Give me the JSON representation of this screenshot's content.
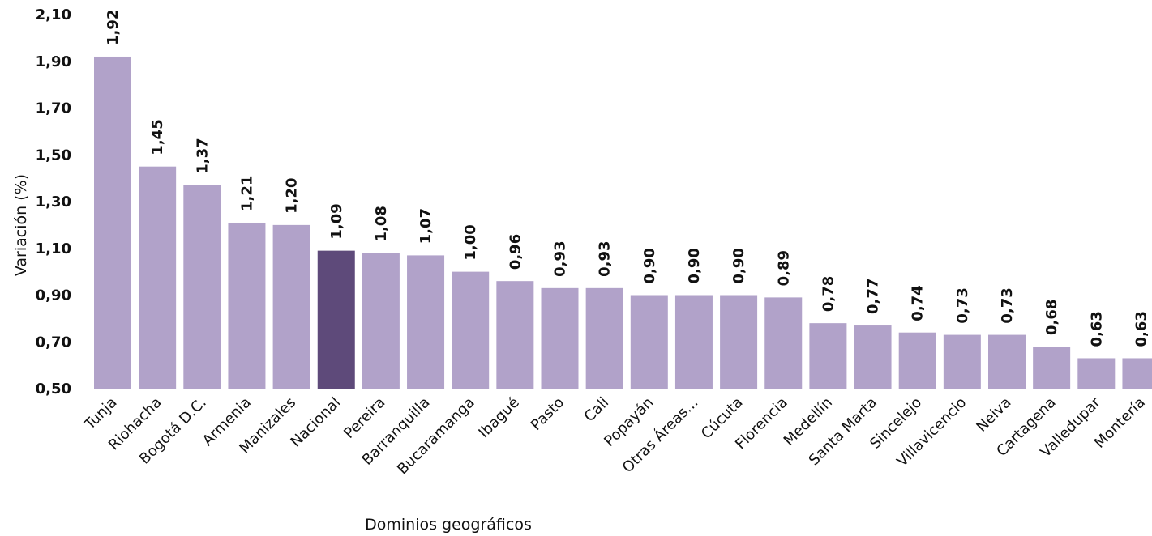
{
  "chart_data": {
    "type": "bar",
    "title": "",
    "xlabel": "Dominios geográficos",
    "ylabel": "Variación (%)",
    "ylim": [
      0.5,
      2.1
    ],
    "yticks": [
      "0,50",
      "0,70",
      "0,90",
      "1,10",
      "1,30",
      "1,50",
      "1,70",
      "1,90",
      "2,10"
    ],
    "ytick_values": [
      0.5,
      0.7,
      0.9,
      1.1,
      1.3,
      1.5,
      1.7,
      1.9,
      2.1
    ],
    "grid": false,
    "categories": [
      "Tunja",
      "Riohacha",
      "Bogotá D.C.",
      "Armenia",
      "Manizales",
      "Nacional",
      "Pereira",
      "Barranquilla",
      "Bucaramanga",
      "Ibagué",
      "Pasto",
      "Cali",
      "Popayán",
      "Otras Áreas...",
      "Cúcuta",
      "Florencia",
      "Medellín",
      "Santa Marta",
      "Sincelejo",
      "Villavicencio",
      "Neiva",
      "Cartagena",
      "Valledupar",
      "Montería"
    ],
    "values": [
      1.92,
      1.45,
      1.37,
      1.21,
      1.2,
      1.09,
      1.08,
      1.07,
      1.0,
      0.96,
      0.93,
      0.93,
      0.9,
      0.9,
      0.9,
      0.89,
      0.78,
      0.77,
      0.74,
      0.73,
      0.73,
      0.68,
      0.63,
      0.63
    ],
    "value_labels": [
      "1,92",
      "1,45",
      "1,37",
      "1,21",
      "1,20",
      "1,09",
      "1,08",
      "1,07",
      "1,00",
      "0,96",
      "0,93",
      "0,93",
      "0,90",
      "0,90",
      "0,90",
      "0,89",
      "0,78",
      "0,77",
      "0,74",
      "0,73",
      "0,73",
      "0,68",
      "0,63",
      "0,63"
    ],
    "highlight_category": "Nacional",
    "colors": {
      "bar": "#b1a2c9",
      "highlight": "#5e4a7a",
      "text": "#111111"
    }
  }
}
